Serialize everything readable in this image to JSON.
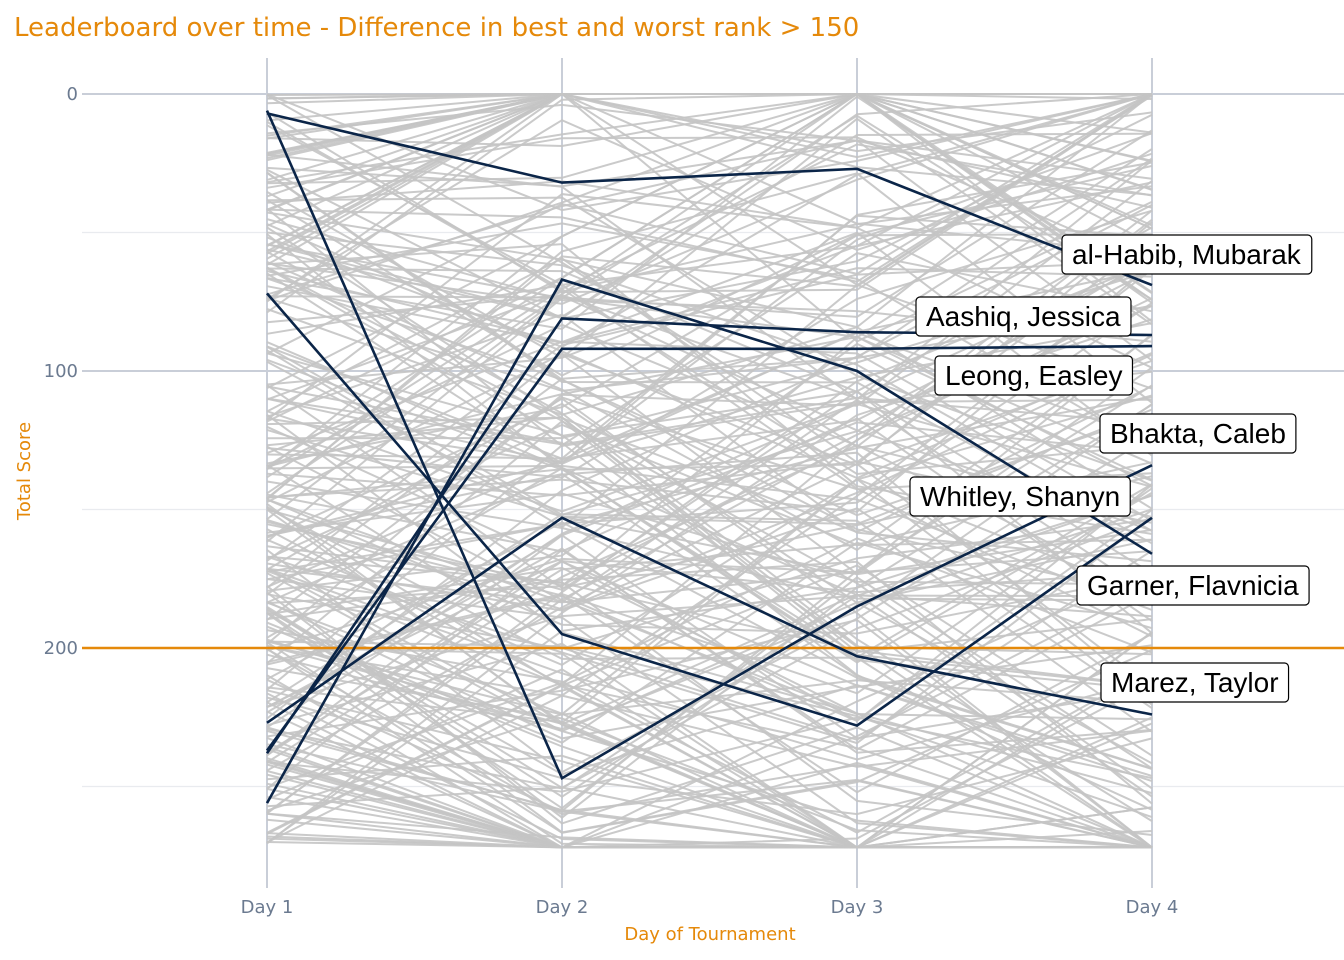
{
  "chart_data": {
    "type": "line",
    "title": "Leaderboard over time - Difference in best and worst rank > 150",
    "xlabel": "Day of Tournament",
    "ylabel": "Total Score",
    "categories": [
      "Day 1",
      "Day 2",
      "Day 3",
      "Day 4"
    ],
    "y_ticks": [
      0,
      100,
      200
    ],
    "ylim": [
      -2,
      272
    ],
    "y_reversed": true,
    "grid": true,
    "reference_line": {
      "value": 200,
      "color": "#e5890a"
    },
    "background_line_color": "#c4c4c4",
    "highlight_color": "#0b2548",
    "background_series_count": 260,
    "highlight_series": [
      {
        "name": "al-Habib, Mubarak",
        "values": [
          7,
          32,
          27,
          69
        ]
      },
      {
        "name": "Aashiq, Jessica",
        "values": [
          238,
          81,
          86,
          87
        ]
      },
      {
        "name": "Leong, Easley",
        "values": [
          237,
          92,
          92,
          91
        ]
      },
      {
        "name": "Bhakta, Caleb",
        "values": [
          6,
          247,
          185,
          134
        ]
      },
      {
        "name": "Whitley, Shanyn",
        "values": [
          72,
          195,
          228,
          153
        ]
      },
      {
        "name": "Garner, Flavnicia",
        "values": [
          256,
          67,
          100,
          166
        ]
      },
      {
        "name": "Marez, Taylor",
        "values": [
          227,
          153,
          203,
          224
        ]
      }
    ]
  }
}
